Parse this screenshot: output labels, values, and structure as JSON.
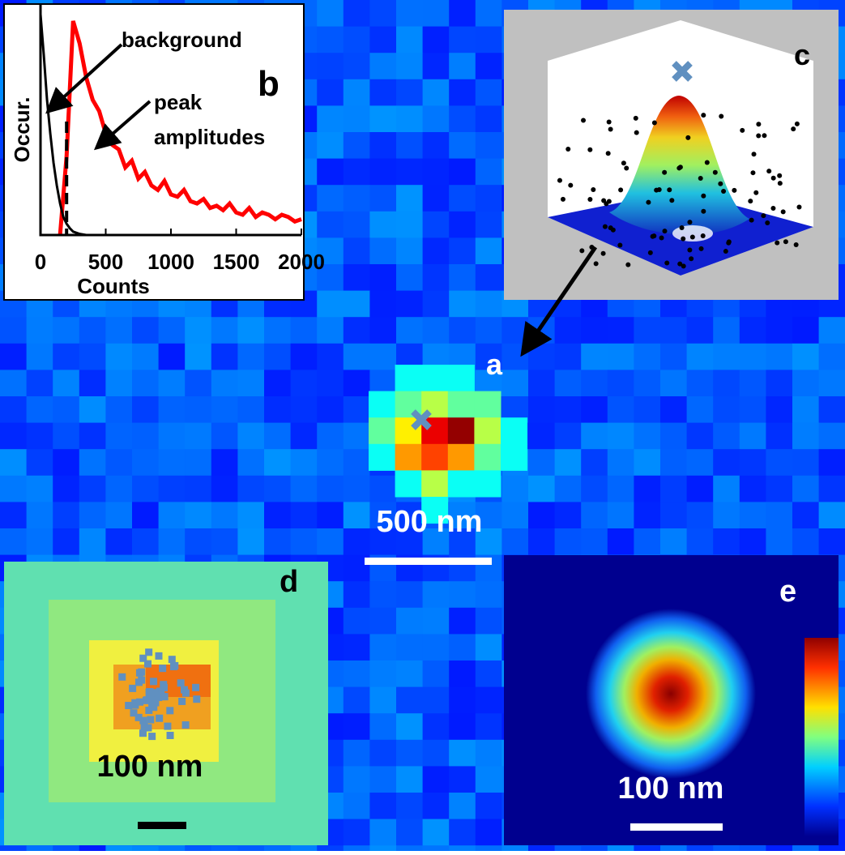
{
  "panels": {
    "a": {
      "label": "a",
      "scale_bar": "500 nm"
    },
    "b": {
      "label": "b"
    },
    "c": {
      "label": "c"
    },
    "d": {
      "label": "d",
      "scale_bar": "100 nm"
    },
    "e": {
      "label": "e",
      "scale_bar": "100 nm"
    }
  },
  "chart_data": {
    "type": "line",
    "xlabel": "Counts",
    "ylabel": "Occur.",
    "annotations": [
      "background",
      "peak",
      "amplitudes"
    ],
    "xlim": [
      0,
      2000
    ],
    "xticks": [
      0,
      500,
      1000,
      1500,
      2000
    ],
    "ylim": [
      0,
      100
    ],
    "threshold_x": 200,
    "series": [
      {
        "color": "#ff0000",
        "x": [
          150,
          200,
          250,
          300,
          350,
          400,
          450,
          500,
          550,
          600,
          650,
          700,
          750,
          800,
          850,
          900,
          950,
          1000,
          1050,
          1100,
          1150,
          1200,
          1250,
          1300,
          1350,
          1400,
          1450,
          1500,
          1550,
          1600,
          1650,
          1700,
          1750,
          1800,
          1850,
          1900,
          1950,
          2000
        ],
        "values": [
          0,
          35,
          95,
          85,
          70,
          60,
          55,
          45,
          40,
          38,
          30,
          33,
          25,
          28,
          22,
          20,
          24,
          18,
          17,
          20,
          15,
          14,
          16,
          12,
          13,
          11,
          14,
          10,
          9,
          12,
          8,
          10,
          9,
          7,
          9,
          8,
          6,
          7
        ]
      },
      {
        "color": "#000000",
        "x": [
          0,
          25,
          50,
          75,
          100,
          125,
          150,
          175,
          200,
          225,
          250,
          300,
          350,
          400
        ],
        "values": [
          98,
          80,
          60,
          45,
          32,
          22,
          14,
          8,
          5,
          3,
          1.5,
          0.5,
          0,
          0
        ]
      }
    ]
  }
}
